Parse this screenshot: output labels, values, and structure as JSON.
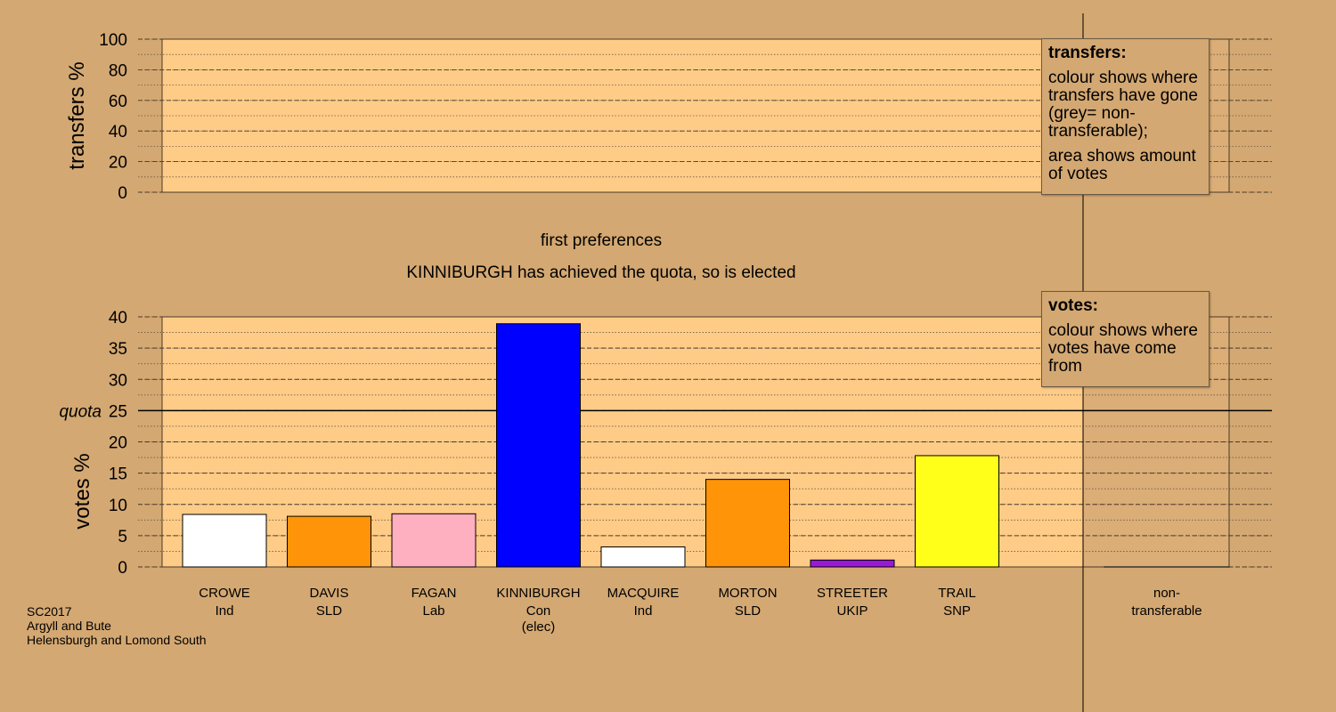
{
  "caption_stage": "first preferences",
  "caption_status": "KINNIBURGH has achieved the quota, so is elected",
  "footer": [
    "SC2017",
    "Argyll and Bute",
    "Helensburgh and Lomond South"
  ],
  "legends": {
    "transfers": {
      "title": "transfers:",
      "lines": [
        "colour shows where transfers have gone (grey= non-transferable);",
        "area shows amount of votes"
      ]
    },
    "votes": {
      "title": "votes:",
      "lines": [
        "colour shows where votes have come from"
      ]
    }
  },
  "colors": {
    "background": "#d4a872",
    "plot_area": "#ffcc88",
    "nontransferable_area": "#bd936a"
  },
  "chart_data": [
    {
      "type": "bar",
      "title": "",
      "ylabel": "transfers %",
      "ylim": [
        0,
        100
      ],
      "yticks": [
        0,
        20,
        40,
        60,
        80,
        100
      ],
      "categories": [],
      "values": [],
      "grid": true
    },
    {
      "type": "bar",
      "title": "first preferences",
      "ylabel": "votes %",
      "ylim": [
        0,
        40
      ],
      "yticks": [
        0,
        5,
        10,
        15,
        20,
        25,
        30,
        35,
        40
      ],
      "quota": {
        "label": "quota",
        "value": 25
      },
      "grid": true,
      "candidates": [
        {
          "name": "CROWE",
          "party": "Ind",
          "note": "",
          "value": 8.4,
          "color": "#ffffff"
        },
        {
          "name": "DAVIS",
          "party": "SLD",
          "note": "",
          "value": 8.1,
          "color": "#ff9408"
        },
        {
          "name": "FAGAN",
          "party": "Lab",
          "note": "",
          "value": 8.5,
          "color": "#ffb0c0"
        },
        {
          "name": "KINNIBURGH",
          "party": "Con",
          "note": "(elec)",
          "value": 38.9,
          "color": "#0000ff"
        },
        {
          "name": "MACQUIRE",
          "party": "Ind",
          "note": "",
          "value": 3.2,
          "color": "#ffffff"
        },
        {
          "name": "MORTON",
          "party": "SLD",
          "note": "",
          "value": 14.0,
          "color": "#ff9408"
        },
        {
          "name": "STREETER",
          "party": "UKIP",
          "note": "",
          "value": 1.1,
          "color": "#9a18d8"
        },
        {
          "name": "TRAIL",
          "party": "SNP",
          "note": "",
          "value": 17.8,
          "color": "#ffff1a"
        }
      ],
      "nontransferable": {
        "label": "non-transferable",
        "value": 0
      }
    }
  ]
}
